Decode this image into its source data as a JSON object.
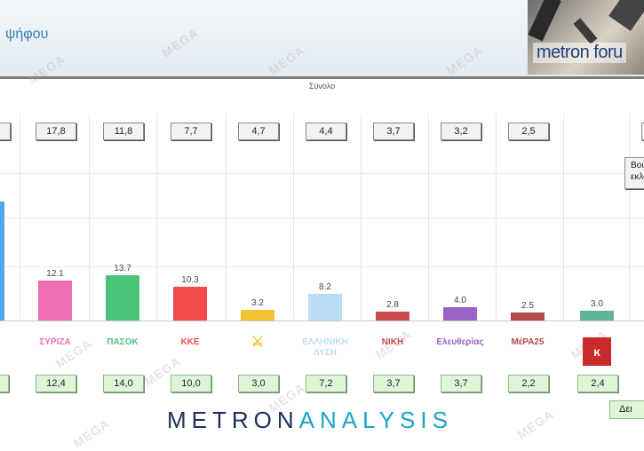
{
  "header": {
    "title": "ψήφου",
    "forum_label": "metron foru"
  },
  "section_label": "Σύνολο",
  "side_button": {
    "line1": "Βουλ",
    "line2": "εκλογ"
  },
  "bottom_button": "Δει",
  "brand": {
    "part1": "METRON",
    "part2": "ANALYSIS"
  },
  "watermark": "MEGA",
  "colors": {
    "syriza": "#f06eb5",
    "pasok": "#4cc37a",
    "kke": "#f24b4b",
    "ellisi": "#f2c232",
    "foni": "#b9dcf7",
    "niki": "#c94a4a",
    "plefs": "#9a63c6",
    "mera25": "#b34a4a",
    "extra": "#5fb39a",
    "first": "#4aa8f0"
  },
  "parties": [
    {
      "logo": "ΣΥΡΙΖΑ",
      "logo_icon": "syriza-logo-icon"
    },
    {
      "logo": "ΠΑΣΟΚ",
      "logo_icon": "pasok-logo-icon"
    },
    {
      "logo": "ΚΚΕ",
      "logo_icon": "kke-logo-icon"
    },
    {
      "logo": "⚔",
      "logo_icon": "spartan-helmet-icon"
    },
    {
      "logo": "ΕΛΛΗΝΙΚΗ ΛΥΣΗ",
      "logo_icon": "elliniki-lysi-logo-icon"
    },
    {
      "logo": "ΝΙΚΗ",
      "logo_icon": "niki-logo-icon"
    },
    {
      "logo": "Ελευθερίας",
      "logo_icon": "plefsi-logo-icon"
    },
    {
      "logo": "ΜέΡΑ25",
      "logo_icon": "mera25-logo-icon"
    },
    {
      "logo": "κ",
      "logo_icon": "kinima-logo-icon"
    }
  ],
  "chart_data": {
    "type": "bar",
    "categories": [
      "ΣΥΡΙΖΑ",
      "ΠΑΣΟΚ",
      "ΚΚΕ",
      "Σπαρτιάτες",
      "Ελληνική Λύση",
      "ΝΙΚΗ",
      "Πλεύση Ελευθερίας",
      "ΜέΡΑ25",
      "Κίνημα"
    ],
    "values": [
      12.1,
      13.7,
      10.3,
      3.2,
      8.2,
      2.8,
      4.0,
      2.5,
      3.0
    ],
    "top_badges": [
      "17,8",
      "11,8",
      "7,7",
      "4,7",
      "4,4",
      "3,7",
      "3,2",
      "2,5",
      ""
    ],
    "bottom_badges": [
      "12,4",
      "14,0",
      "10,0",
      "3,0",
      "7,2",
      "3,7",
      "3,7",
      "2,2",
      "2,4"
    ],
    "value_labels": [
      "12.1",
      "13.7",
      "10.3",
      "3.2",
      "8.2",
      "2.8",
      "4.0",
      "2.5",
      "3.0"
    ],
    "title": "",
    "ylim": [
      0,
      27
    ],
    "grid": true
  }
}
